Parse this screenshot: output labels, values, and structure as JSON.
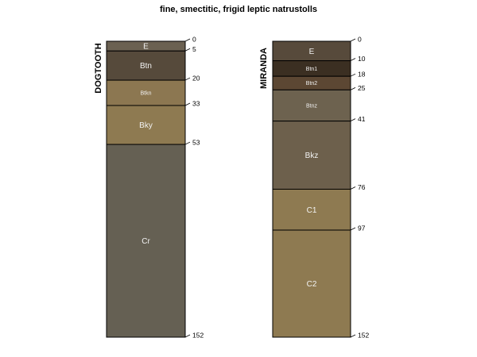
{
  "title": "fine, smectitic, frigid leptic natrustolls",
  "profiles": [
    {
      "name": "DOGTOOTH",
      "max_depth": 152,
      "horizons": [
        {
          "name": "E",
          "top": 0,
          "bottom": 5,
          "color": "#6b6152",
          "label_size": 10
        },
        {
          "name": "Btn",
          "top": 5,
          "bottom": 20,
          "color": "#564a3b",
          "label_size": 10
        },
        {
          "name": "Btkn",
          "top": 20,
          "bottom": 33,
          "color": "#8c7751",
          "label_size": 7
        },
        {
          "name": "Bky",
          "top": 33,
          "bottom": 53,
          "color": "#8e7a51",
          "label_size": 10
        },
        {
          "name": "Cr",
          "top": 53,
          "bottom": 152,
          "color": "#656053",
          "label_size": 10
        }
      ],
      "depth_labels": [
        "0",
        "5",
        "20",
        "33",
        "53",
        "152"
      ]
    },
    {
      "name": "MIRANDA",
      "max_depth": 152,
      "horizons": [
        {
          "name": "E",
          "top": 0,
          "bottom": 10,
          "color": "#574a3b",
          "label_size": 10
        },
        {
          "name": "Btn1",
          "top": 10,
          "bottom": 18,
          "color": "#3b2f22",
          "label_size": 7
        },
        {
          "name": "Btn2",
          "top": 18,
          "bottom": 25,
          "color": "#5c4733",
          "label_size": 7
        },
        {
          "name": "Btnz",
          "top": 25,
          "bottom": 41,
          "color": "#6d624f",
          "label_size": 7
        },
        {
          "name": "Bkz",
          "top": 41,
          "bottom": 76,
          "color": "#6d604c",
          "label_size": 10
        },
        {
          "name": "C1",
          "top": 76,
          "bottom": 97,
          "color": "#8e7a51",
          "label_size": 10
        },
        {
          "name": "C2",
          "top": 97,
          "bottom": 152,
          "color": "#8e7a51",
          "label_size": 10
        }
      ],
      "depth_labels": [
        "0",
        "10",
        "18",
        "25",
        "41",
        "76",
        "97",
        "152"
      ]
    }
  ]
}
